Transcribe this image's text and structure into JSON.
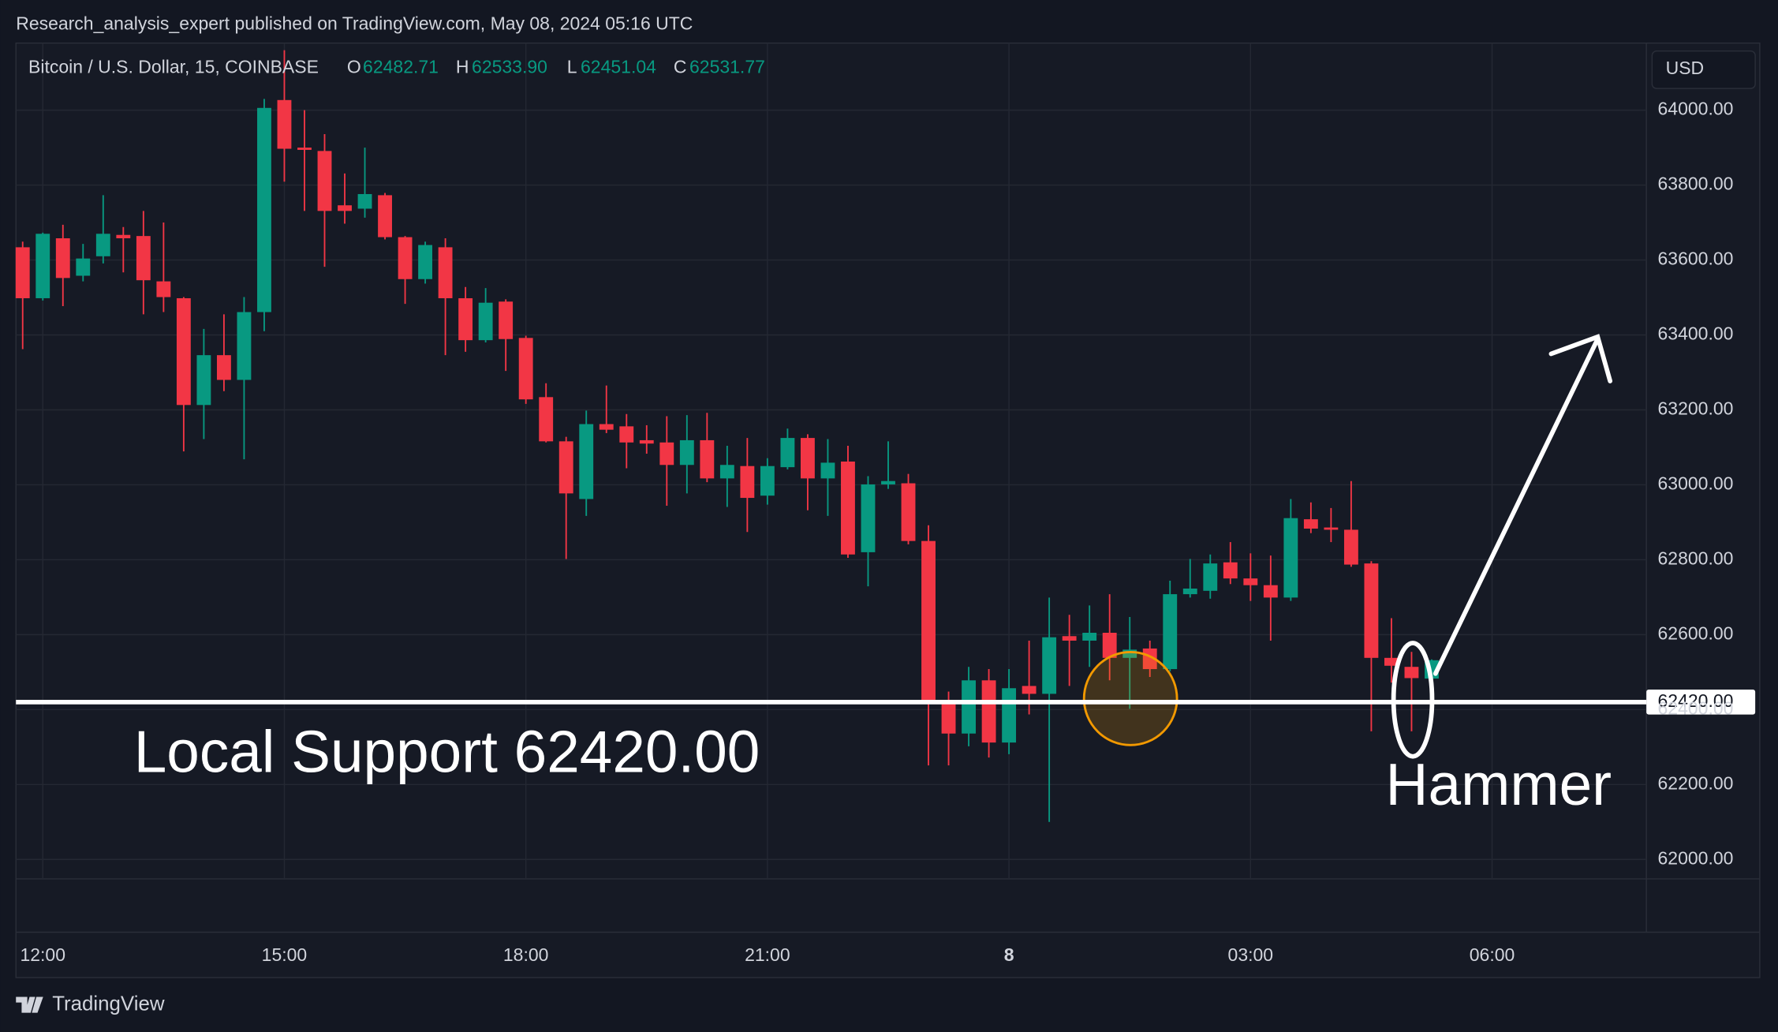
{
  "header": {
    "published": "Research_analysis_expert published on TradingView.com, May 08, 2024 05:16 UTC"
  },
  "footer": {
    "brand": "TradingView"
  },
  "currency": "USD",
  "legend": {
    "symbol": "Bitcoin / U.S. Dollar, 15, COINBASE",
    "items": [
      {
        "key": "O",
        "text": "62482.71"
      },
      {
        "key": "H",
        "text": "62533.90"
      },
      {
        "key": "L",
        "text": "62451.04"
      },
      {
        "key": "C",
        "text": "62531.77"
      }
    ]
  },
  "chart_data": {
    "type": "candlestick",
    "up_color": "#089981",
    "down_color": "#f23645",
    "grid": true,
    "x": [
      "11:45",
      "12:00",
      "12:15",
      "12:30",
      "12:45",
      "13:00",
      "13:15",
      "13:30",
      "13:45",
      "14:00",
      "14:15",
      "14:30",
      "14:45",
      "15:00",
      "15:15",
      "15:30",
      "15:45",
      "16:00",
      "16:15",
      "16:30",
      "16:45",
      "17:00",
      "17:15",
      "17:30",
      "17:45",
      "18:00",
      "18:15",
      "18:30",
      "18:45",
      "19:00",
      "19:15",
      "19:30",
      "19:45",
      "20:00",
      "20:15",
      "20:30",
      "20:45",
      "21:00",
      "21:15",
      "21:30",
      "21:45",
      "22:00",
      "22:15",
      "22:30",
      "22:45",
      "23:00",
      "23:15",
      "23:30",
      "23:45",
      "00:00",
      "00:15",
      "00:30",
      "00:45",
      "01:00",
      "01:15",
      "01:30",
      "01:45",
      "02:00",
      "02:15",
      "02:30",
      "02:45",
      "03:00",
      "03:15",
      "03:30",
      "03:45",
      "04:00",
      "04:15",
      "04:30",
      "04:45",
      "05:00",
      "05:15"
    ],
    "open": [
      63634,
      63498,
      63658,
      63558,
      63610,
      63667,
      63664,
      63543,
      63498,
      63213,
      63346,
      63280,
      63461,
      64027,
      63900,
      63891,
      63746,
      63737,
      63773,
      63661,
      63549,
      63634,
      63498,
      63386,
      63489,
      63392,
      63234,
      63116,
      62962,
      63162,
      63156,
      63119,
      63113,
      63053,
      63119,
      63017,
      63050,
      62971,
      63047,
      63125,
      63017,
      63062,
      62820,
      63001,
      63004,
      62850,
      62423,
      62336,
      62478,
      62312,
      62463,
      62442,
      62596,
      62584,
      62605,
      62538,
      62563,
      62508,
      62708,
      62717,
      62793,
      62750,
      62732,
      62699,
      62908,
      62886,
      62880,
      62790,
      62538,
      62514,
      62482.71
    ],
    "high": [
      63649,
      63673,
      63694,
      63643,
      63773,
      63688,
      63731,
      63700,
      63501,
      63416,
      63455,
      63501,
      64030,
      64160,
      64000,
      63936,
      63831,
      63900,
      63779,
      63664,
      63649,
      63658,
      63528,
      63525,
      63495,
      63398,
      63271,
      63128,
      63198,
      63265,
      63189,
      63159,
      63183,
      63186,
      63192,
      63104,
      63125,
      63071,
      63150,
      63135,
      63122,
      63104,
      63023,
      63116,
      63029,
      62892,
      62448,
      62514,
      62508,
      62508,
      62584,
      62699,
      62653,
      62678,
      62708,
      62647,
      62584,
      62744,
      62802,
      62814,
      62847,
      62817,
      62811,
      62962,
      62953,
      62938,
      63010,
      62796,
      62644,
      62554,
      62533.9
    ],
    "low": [
      63362,
      63492,
      63477,
      63543,
      63591,
      63567,
      63455,
      63461,
      63089,
      63122,
      63250,
      63068,
      63410,
      63809,
      63731,
      63582,
      63697,
      63713,
      63655,
      63483,
      63537,
      63346,
      63355,
      63380,
      63304,
      63216,
      63113,
      62802,
      62917,
      63138,
      63044,
      63083,
      62944,
      62977,
      63007,
      62941,
      62874,
      62947,
      63041,
      62932,
      62917,
      62805,
      62729,
      62989,
      62841,
      62251,
      62251,
      62302,
      62272,
      62281,
      62387,
      62100,
      62463,
      62514,
      62478,
      62402,
      62487,
      62502,
      62699,
      62696,
      62735,
      62690,
      62584,
      62690,
      62871,
      62847,
      62781,
      62342,
      62472,
      62342,
      62451.04
    ],
    "close": [
      63498,
      63670,
      63552,
      63604,
      63670,
      63658,
      63546,
      63501,
      63213,
      63346,
      63280,
      63461,
      64006,
      63897,
      63894,
      63731,
      63731,
      63776,
      63661,
      63549,
      63640,
      63498,
      63386,
      63486,
      63389,
      63228,
      63116,
      62977,
      63162,
      63147,
      63113,
      63110,
      63053,
      63119,
      63017,
      63053,
      62965,
      63050,
      63125,
      63017,
      63059,
      62814,
      63001,
      63010,
      62850,
      62423,
      62336,
      62478,
      62312,
      62457,
      62442,
      62593,
      62584,
      62605,
      62538,
      62560,
      62508,
      62708,
      62723,
      62790,
      62750,
      62732,
      62699,
      62911,
      62883,
      62880,
      62787,
      62538,
      62517,
      62484,
      62531.77
    ],
    "xlim": [
      "11:40",
      "07:55"
    ],
    "xticks": [
      "12:00",
      "15:00",
      "18:00",
      "21:00",
      {
        "value": "00:00",
        "label": "8"
      },
      "03:00",
      "06:00"
    ],
    "ylim": [
      61948,
      64179
    ],
    "yticks": [
      {
        "value": 62000,
        "label": "62000.00"
      },
      {
        "value": 62200,
        "label": "62200.00"
      },
      {
        "value": 62400,
        "label": "62400.00"
      },
      {
        "value": 62600,
        "label": "62600.00"
      },
      {
        "value": 62800,
        "label": "62800.00"
      },
      {
        "value": 63000,
        "label": "63000.00"
      },
      {
        "value": 63200,
        "label": "63200.00"
      },
      {
        "value": 63400,
        "label": "63400.00"
      },
      {
        "value": 63600,
        "label": "63600.00"
      },
      {
        "value": 63800,
        "label": "63800.00"
      },
      {
        "value": 64000,
        "label": "64000.00"
      }
    ],
    "support": {
      "value": 62420,
      "label": "62420.00"
    },
    "annotations": {
      "support_text": "Local Support 62420.00",
      "pattern": "Hammer"
    }
  }
}
